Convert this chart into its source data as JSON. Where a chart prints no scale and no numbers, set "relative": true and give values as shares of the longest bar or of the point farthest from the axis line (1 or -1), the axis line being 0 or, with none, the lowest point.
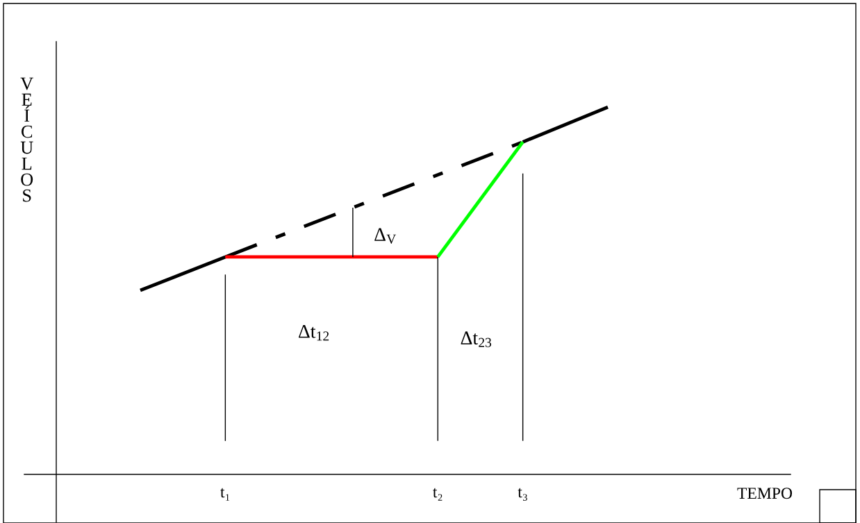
{
  "chart_data": {
    "type": "line",
    "relative": true,
    "categories": [
      null,
      null,
      null,
      null,
      "t₁",
      null,
      null,
      null,
      null,
      null,
      null,
      null,
      null,
      null,
      "t₂",
      null,
      null,
      null,
      "t₃",
      null,
      null,
      null,
      null
    ],
    "series": [
      {
        "color": "#000000",
        "values": [
          0.501,
          null,
          null,
          null,
          0.592,
          null,
          null,
          null,
          null,
          null,
          null,
          null,
          null,
          null,
          null,
          null,
          null,
          null,
          null,
          null,
          null,
          null,
          null
        ],
        "line_style": "solid"
      },
      {
        "color": "#000000",
        "values": [
          null,
          null,
          null,
          null,
          0.592,
          null,
          null,
          null,
          null,
          null,
          null,
          null,
          null,
          null,
          null,
          null,
          null,
          null,
          0.905,
          null,
          null,
          null,
          null
        ],
        "line_style": "dashdot"
      },
      {
        "color": "#000000",
        "values": [
          null,
          null,
          null,
          null,
          null,
          null,
          null,
          null,
          null,
          null,
          null,
          null,
          null,
          null,
          null,
          null,
          null,
          null,
          0.905,
          null,
          null,
          null,
          1.0
        ],
        "line_style": "solid"
      },
      {
        "color": "#ff0000",
        "values": [
          null,
          null,
          null,
          null,
          0.592,
          null,
          null,
          null,
          null,
          null,
          null,
          null,
          null,
          null,
          0.592,
          null,
          null,
          null,
          null,
          null,
          null,
          null,
          null
        ],
        "line_style": "solid"
      },
      {
        "color": "#00ff00",
        "values": [
          null,
          null,
          null,
          null,
          null,
          null,
          null,
          null,
          null,
          null,
          null,
          null,
          null,
          null,
          0.592,
          null,
          null,
          null,
          0.905,
          null,
          null,
          null,
          null
        ],
        "line_style": "solid"
      }
    ],
    "ref_lines": [
      {
        "axis": "x",
        "value": "t₁",
        "color": "#000000"
      },
      {
        "axis": "x",
        "value": "t₂",
        "color": "#000000"
      },
      {
        "axis": "x",
        "value": "t₃",
        "color": "#000000"
      }
    ],
    "annotations": [
      "Δt$_{12}$",
      "Δt$_{23}$",
      "Δ$_{V}$",
      "VEÍCULOS",
      "TEMPO"
    ],
    "grid": false,
    "legend": false
  }
}
